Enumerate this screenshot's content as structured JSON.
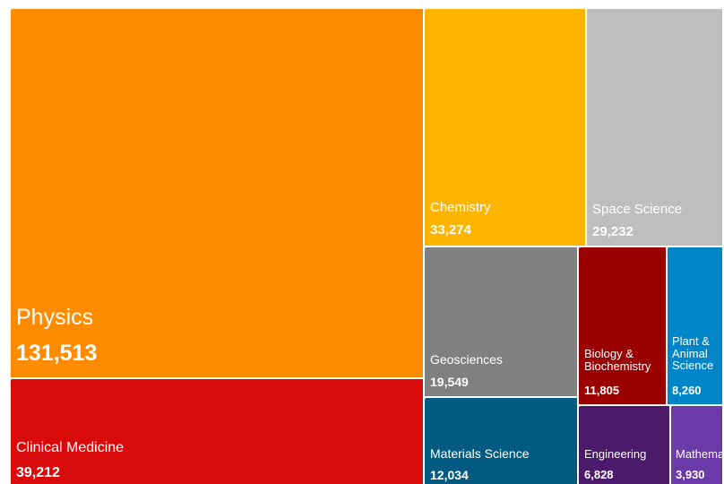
{
  "chart_data": {
    "type": "treemap",
    "title": "",
    "categories": [
      "Physics",
      "Clinical Medicine",
      "Chemistry",
      "Space Science",
      "Geosciences",
      "Biology & Biochemistry",
      "Plant & Animal Science",
      "Materials Science",
      "Engineering",
      "Mathematics"
    ],
    "values": [
      131513,
      39212,
      33274,
      29232,
      19549,
      11805,
      8260,
      12034,
      6828,
      3930
    ],
    "labels": [
      {
        "name": "Physics",
        "value": "131,513"
      },
      {
        "name": "Clinical Medicine",
        "value": "39,212"
      },
      {
        "name": "Chemistry",
        "value": "33,274"
      },
      {
        "name": "Space Science",
        "value": "29,232"
      },
      {
        "name": "Geosciences",
        "value": "19,549"
      },
      {
        "name": "Biology &\nBiochemistry",
        "value": "11,805"
      },
      {
        "name": "Plant &\nAnimal\nScience",
        "value": "8,260"
      },
      {
        "name": "Materials Science",
        "value": "12,034"
      },
      {
        "name": "Engineering",
        "value": "6,828"
      },
      {
        "name": "Mathematics",
        "value": "3,930"
      }
    ],
    "colors": [
      "#ff8c00",
      "#d80a0a",
      "#ffb400",
      "#bebebe",
      "#808080",
      "#9a0000",
      "#0085c8",
      "#005a82",
      "#4b1a6b",
      "#6a3aa8"
    ]
  }
}
